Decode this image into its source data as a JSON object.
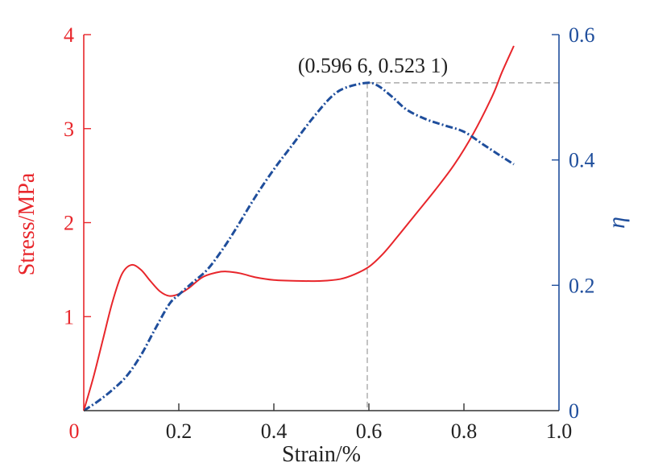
{
  "colors": {
    "stress": "#e8262b",
    "eta": "#1f4e9c",
    "axis_x": "#333333",
    "guide": "#9a9a9a",
    "text": "#222222"
  },
  "chart_data": {
    "type": "line",
    "title": "",
    "xlabel": "Strain/%",
    "ylabel_left": "Stress/MPa",
    "ylabel_right": "η",
    "xlim": [
      0,
      1.0
    ],
    "ylim_left": [
      0,
      4
    ],
    "ylim_right": [
      0,
      0.6
    ],
    "x_ticks": [
      {
        "value": 0,
        "label": "0"
      },
      {
        "value": 0.2,
        "label": "0.2"
      },
      {
        "value": 0.4,
        "label": "0.4"
      },
      {
        "value": 0.6,
        "label": "0.6"
      },
      {
        "value": 0.8,
        "label": "0.8"
      },
      {
        "value": 1.0,
        "label": "1.0"
      }
    ],
    "y_left_ticks": [
      {
        "value": 1,
        "label": "1"
      },
      {
        "value": 2,
        "label": "2"
      },
      {
        "value": 3,
        "label": "3"
      },
      {
        "value": 4,
        "label": "4"
      }
    ],
    "y_right_ticks": [
      {
        "value": 0,
        "label": "0"
      },
      {
        "value": 0.2,
        "label": "0.2"
      },
      {
        "value": 0.4,
        "label": "0.4"
      },
      {
        "value": 0.6,
        "label": "0.6"
      }
    ],
    "series": [
      {
        "name": "Stress",
        "axis": "left",
        "style": "solid",
        "x": [
          0,
          0.02,
          0.04,
          0.06,
          0.08,
          0.1,
          0.12,
          0.14,
          0.16,
          0.18,
          0.2,
          0.22,
          0.25,
          0.28,
          0.3,
          0.33,
          0.36,
          0.4,
          0.45,
          0.5,
          0.54,
          0.57,
          0.6,
          0.63,
          0.66,
          0.7,
          0.74,
          0.78,
          0.82,
          0.86,
          0.88,
          0.905
        ],
        "values": [
          0,
          0.35,
          0.75,
          1.15,
          1.45,
          1.55,
          1.5,
          1.38,
          1.27,
          1.22,
          1.24,
          1.3,
          1.42,
          1.47,
          1.48,
          1.46,
          1.42,
          1.39,
          1.38,
          1.38,
          1.4,
          1.45,
          1.53,
          1.67,
          1.85,
          2.1,
          2.35,
          2.62,
          2.95,
          3.35,
          3.6,
          3.88
        ]
      },
      {
        "name": "η",
        "axis": "right",
        "style": "dash-dot",
        "x": [
          0,
          0.03,
          0.06,
          0.09,
          0.12,
          0.15,
          0.18,
          0.2,
          0.23,
          0.26,
          0.29,
          0.32,
          0.36,
          0.4,
          0.44,
          0.48,
          0.52,
          0.55,
          0.5966,
          0.62,
          0.65,
          0.68,
          0.72,
          0.76,
          0.8,
          0.84,
          0.87,
          0.905
        ],
        "values": [
          0,
          0.015,
          0.033,
          0.055,
          0.088,
          0.13,
          0.17,
          0.185,
          0.205,
          0.225,
          0.255,
          0.29,
          0.34,
          0.385,
          0.425,
          0.465,
          0.5,
          0.515,
          0.5231,
          0.518,
          0.5,
          0.48,
          0.465,
          0.455,
          0.445,
          0.425,
          0.41,
          0.393
        ]
      }
    ],
    "annotations": [
      {
        "text": "(0.596 6, 0.523 1)",
        "x": 0.5966,
        "y": 0.5231,
        "axis": "right"
      }
    ]
  }
}
